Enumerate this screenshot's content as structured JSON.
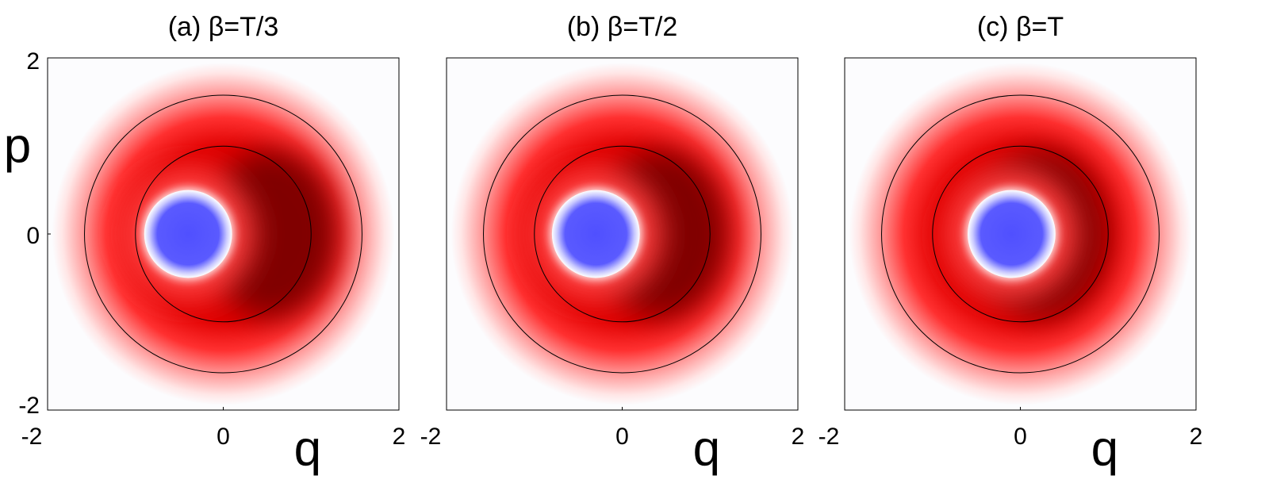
{
  "chart_data": [
    {
      "type": "density",
      "title": "(a)  β=T/3",
      "xlabel": "q",
      "ylabel": "p",
      "xlim": [
        -2,
        2
      ],
      "ylim": [
        -2,
        2
      ],
      "xticks": [
        -2,
        0,
        2
      ],
      "yticks": [
        -2,
        0,
        2
      ]
    },
    {
      "type": "density",
      "title": "(b)  β=T/2",
      "xlabel": "q",
      "xlim": [
        -2,
        2
      ],
      "ylim": [
        -2,
        2
      ],
      "xticks": [
        -2,
        0,
        2
      ]
    },
    {
      "type": "density",
      "title": "(c)  β=T",
      "xlabel": "q",
      "xlim": [
        -2,
        2
      ],
      "ylim": [
        -2,
        2
      ],
      "xticks": [
        -2,
        0,
        2
      ]
    }
  ]
}
